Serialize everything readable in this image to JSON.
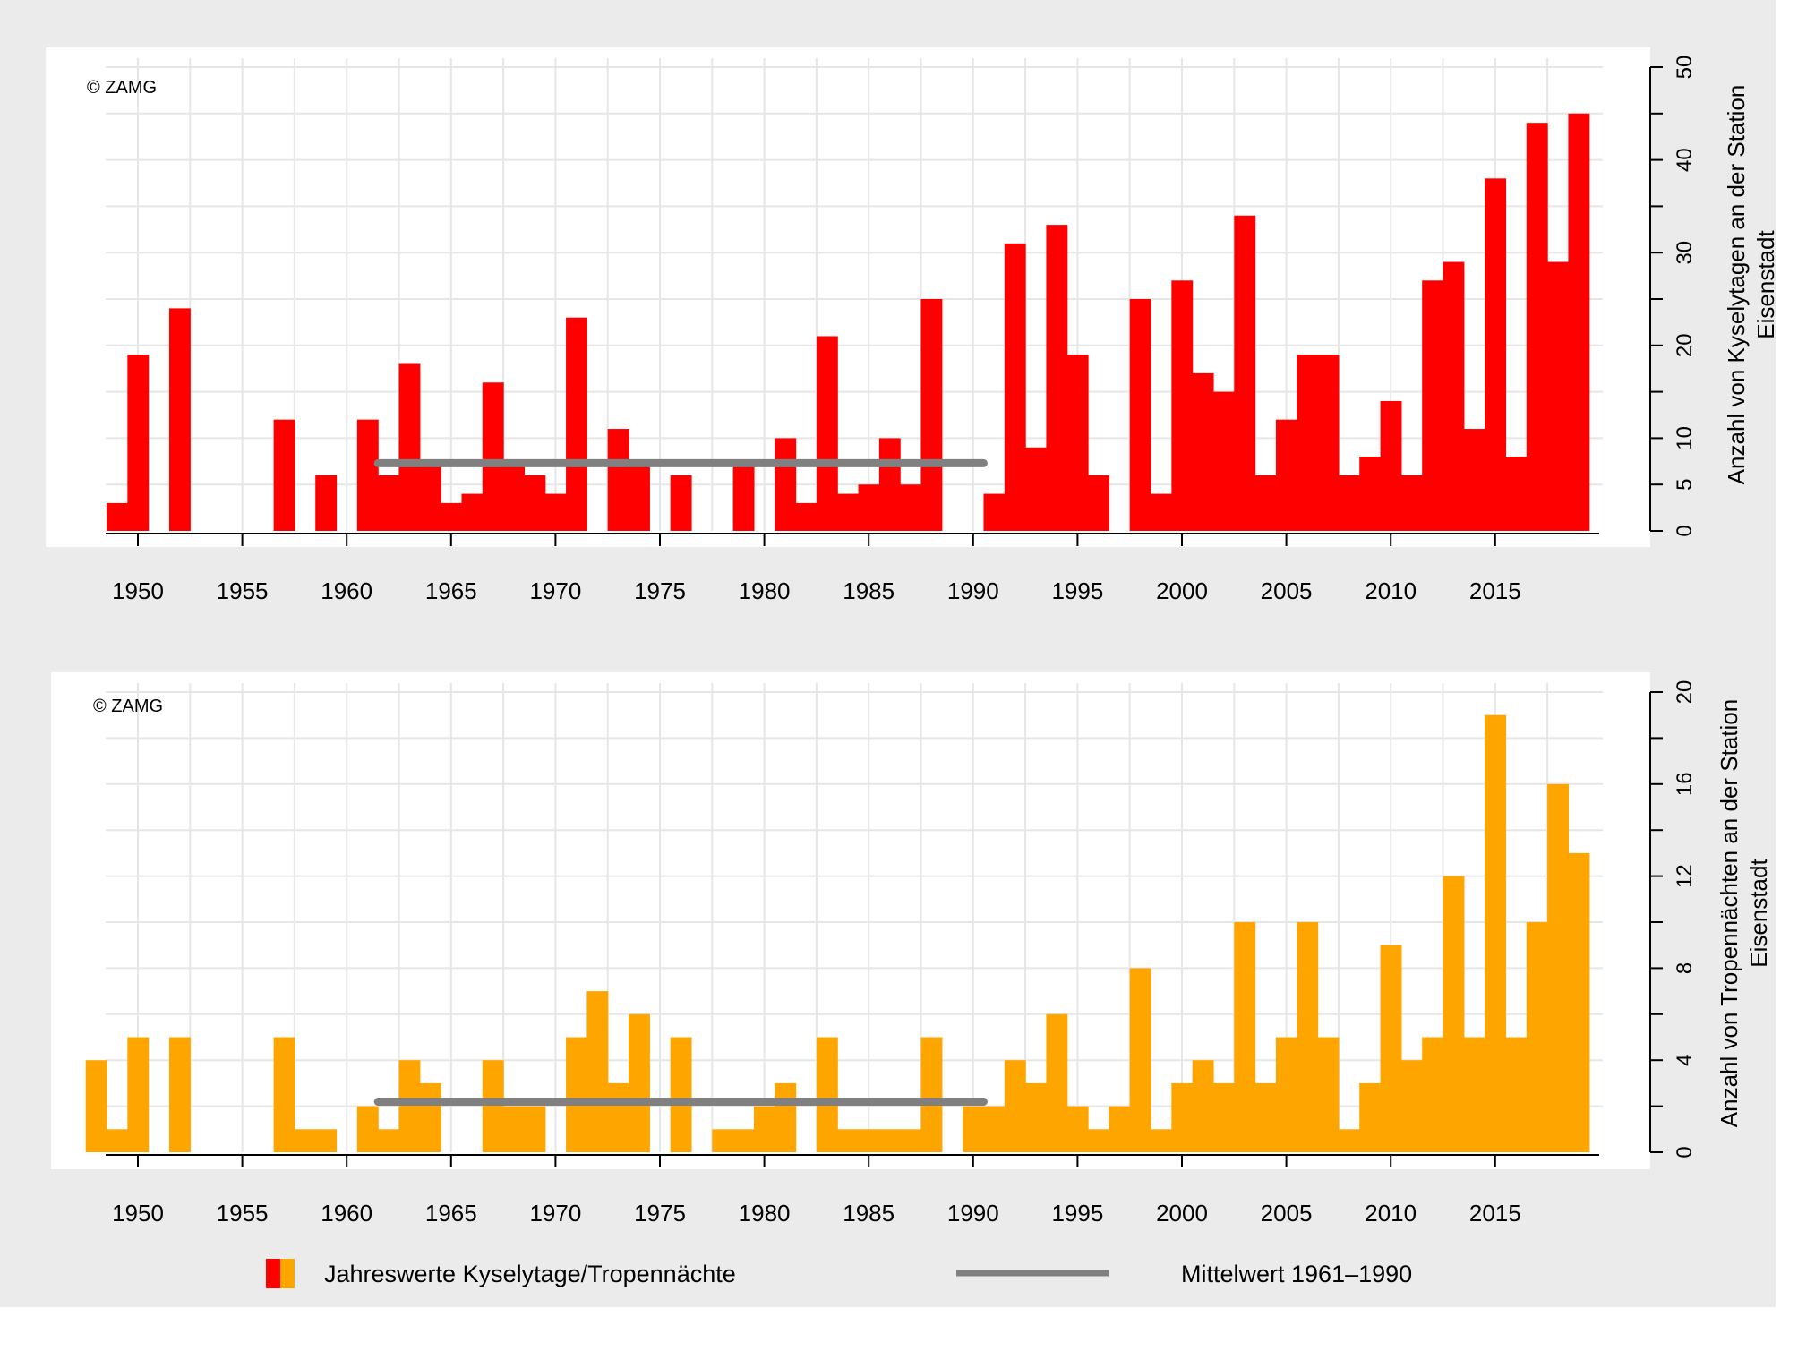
{
  "colors": {
    "background": "#ebebeb",
    "panel": "#ffffff",
    "grid": "#e6e6e6",
    "mean_line": "#808080",
    "series_top": "#ff0000",
    "series_bottom": "#ffa500"
  },
  "legend": {
    "bars_label": "Jahreswerte Kyselytage/Tropennächte",
    "mean_label": "Mittelwert 1961–1990"
  },
  "chart_data": [
    {
      "type": "bar",
      "copyright": "© ZAMG",
      "ylabel": [
        "Anzahl von Kyselytagen an der Station",
        "Eisenstadt"
      ],
      "xlim": [
        1948,
        2019.5
      ],
      "ylim": [
        0,
        50
      ],
      "xticks": [
        1950,
        1955,
        1960,
        1965,
        1970,
        1975,
        1980,
        1985,
        1990,
        1995,
        2000,
        2005,
        2010,
        2015
      ],
      "yticks": [
        0,
        5,
        10,
        20,
        30,
        40,
        50
      ],
      "grid": true,
      "color": "#ff0000",
      "x": [
        1949,
        1950,
        1951,
        1952,
        1953,
        1954,
        1955,
        1956,
        1957,
        1958,
        1959,
        1960,
        1961,
        1962,
        1963,
        1964,
        1965,
        1966,
        1967,
        1968,
        1969,
        1970,
        1971,
        1972,
        1973,
        1974,
        1975,
        1976,
        1977,
        1978,
        1979,
        1980,
        1981,
        1982,
        1983,
        1984,
        1985,
        1986,
        1987,
        1988,
        1989,
        1990,
        1991,
        1992,
        1993,
        1994,
        1995,
        1996,
        1997,
        1998,
        1999,
        2000,
        2001,
        2002,
        2003,
        2004,
        2005,
        2006,
        2007,
        2008,
        2009,
        2010,
        2011,
        2012,
        2013,
        2014,
        2015,
        2016,
        2017,
        2018,
        2019
      ],
      "values": [
        3,
        19,
        0,
        24,
        0,
        0,
        0,
        0,
        12,
        0,
        6,
        0,
        12,
        6,
        18,
        7,
        3,
        4,
        16,
        7,
        6,
        4,
        23,
        0,
        11,
        7,
        0,
        6,
        0,
        0,
        7,
        0,
        10,
        3,
        21,
        4,
        5,
        10,
        5,
        25,
        0,
        0,
        4,
        31,
        9,
        33,
        19,
        6,
        0,
        25,
        4,
        27,
        17,
        15,
        34,
        6,
        12,
        19,
        19,
        6,
        8,
        14,
        6,
        27,
        29,
        11,
        38,
        8,
        44,
        29,
        45
      ],
      "mean_1961_1990": 7.3
    },
    {
      "type": "bar",
      "copyright": "© ZAMG",
      "ylabel": [
        "Anzahl von Tropennächten an der Station",
        "Eisenstadt"
      ],
      "xlim": [
        1947.5,
        2019.5
      ],
      "ylim": [
        0,
        20
      ],
      "xticks": [
        1950,
        1955,
        1960,
        1965,
        1970,
        1975,
        1980,
        1985,
        1990,
        1995,
        2000,
        2005,
        2010,
        2015
      ],
      "yticks": [
        0,
        4,
        8,
        12,
        16,
        20
      ],
      "grid": true,
      "color": "#ffa500",
      "x": [
        1948,
        1949,
        1950,
        1951,
        1952,
        1953,
        1954,
        1955,
        1956,
        1957,
        1958,
        1959,
        1960,
        1961,
        1962,
        1963,
        1964,
        1965,
        1966,
        1967,
        1968,
        1969,
        1970,
        1971,
        1972,
        1973,
        1974,
        1975,
        1976,
        1977,
        1978,
        1979,
        1980,
        1981,
        1982,
        1983,
        1984,
        1985,
        1986,
        1987,
        1988,
        1989,
        1990,
        1991,
        1992,
        1993,
        1994,
        1995,
        1996,
        1997,
        1998,
        1999,
        2000,
        2001,
        2002,
        2003,
        2004,
        2005,
        2006,
        2007,
        2008,
        2009,
        2010,
        2011,
        2012,
        2013,
        2014,
        2015,
        2016,
        2017,
        2018,
        2019
      ],
      "values": [
        4,
        1,
        5,
        0,
        5,
        0,
        0,
        0,
        0,
        5,
        1,
        1,
        0,
        2,
        1,
        4,
        3,
        0,
        0,
        4,
        2,
        2,
        0,
        5,
        7,
        3,
        6,
        0,
        5,
        0,
        1,
        1,
        2,
        3,
        0,
        5,
        1,
        1,
        1,
        1,
        5,
        0,
        2,
        2,
        4,
        3,
        6,
        2,
        1,
        2,
        8,
        1,
        3,
        4,
        3,
        10,
        3,
        5,
        10,
        5,
        1,
        3,
        9,
        4,
        5,
        12,
        5,
        19,
        5,
        10,
        16,
        13
      ],
      "mean_1961_1990": 2.2
    }
  ]
}
